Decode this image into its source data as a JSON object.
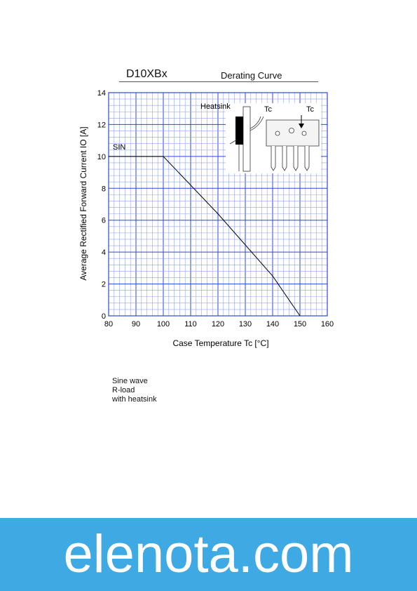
{
  "header": {
    "part_number": "D10XBx",
    "description": "Derating  Curve"
  },
  "chart_data": {
    "type": "line",
    "xlabel": "Case Temperature  Tc  [°C]",
    "ylabel": "Average Rectified Forward Current  IO [A]",
    "xlim": [
      80,
      160
    ],
    "ylim": [
      0,
      14
    ],
    "xticks": [
      80,
      90,
      100,
      110,
      120,
      130,
      140,
      150,
      160
    ],
    "yticks": [
      0,
      2,
      4,
      6,
      8,
      10,
      12,
      14
    ],
    "grid": true,
    "series": [
      {
        "name": "SIN",
        "x": [
          80,
          100,
          120,
          140,
          150
        ],
        "y": [
          10,
          10,
          6.4,
          2.5,
          0
        ]
      }
    ],
    "inset": {
      "heatsink_label": "Heatsink",
      "tc_label_left": "Tc",
      "tc_label_right": "Tc"
    }
  },
  "notes": [
    "Sine wave",
    "R-load",
    "with  heatsink"
  ],
  "footer": {
    "site": "elenota.com",
    "color": "#3fa9e3"
  }
}
